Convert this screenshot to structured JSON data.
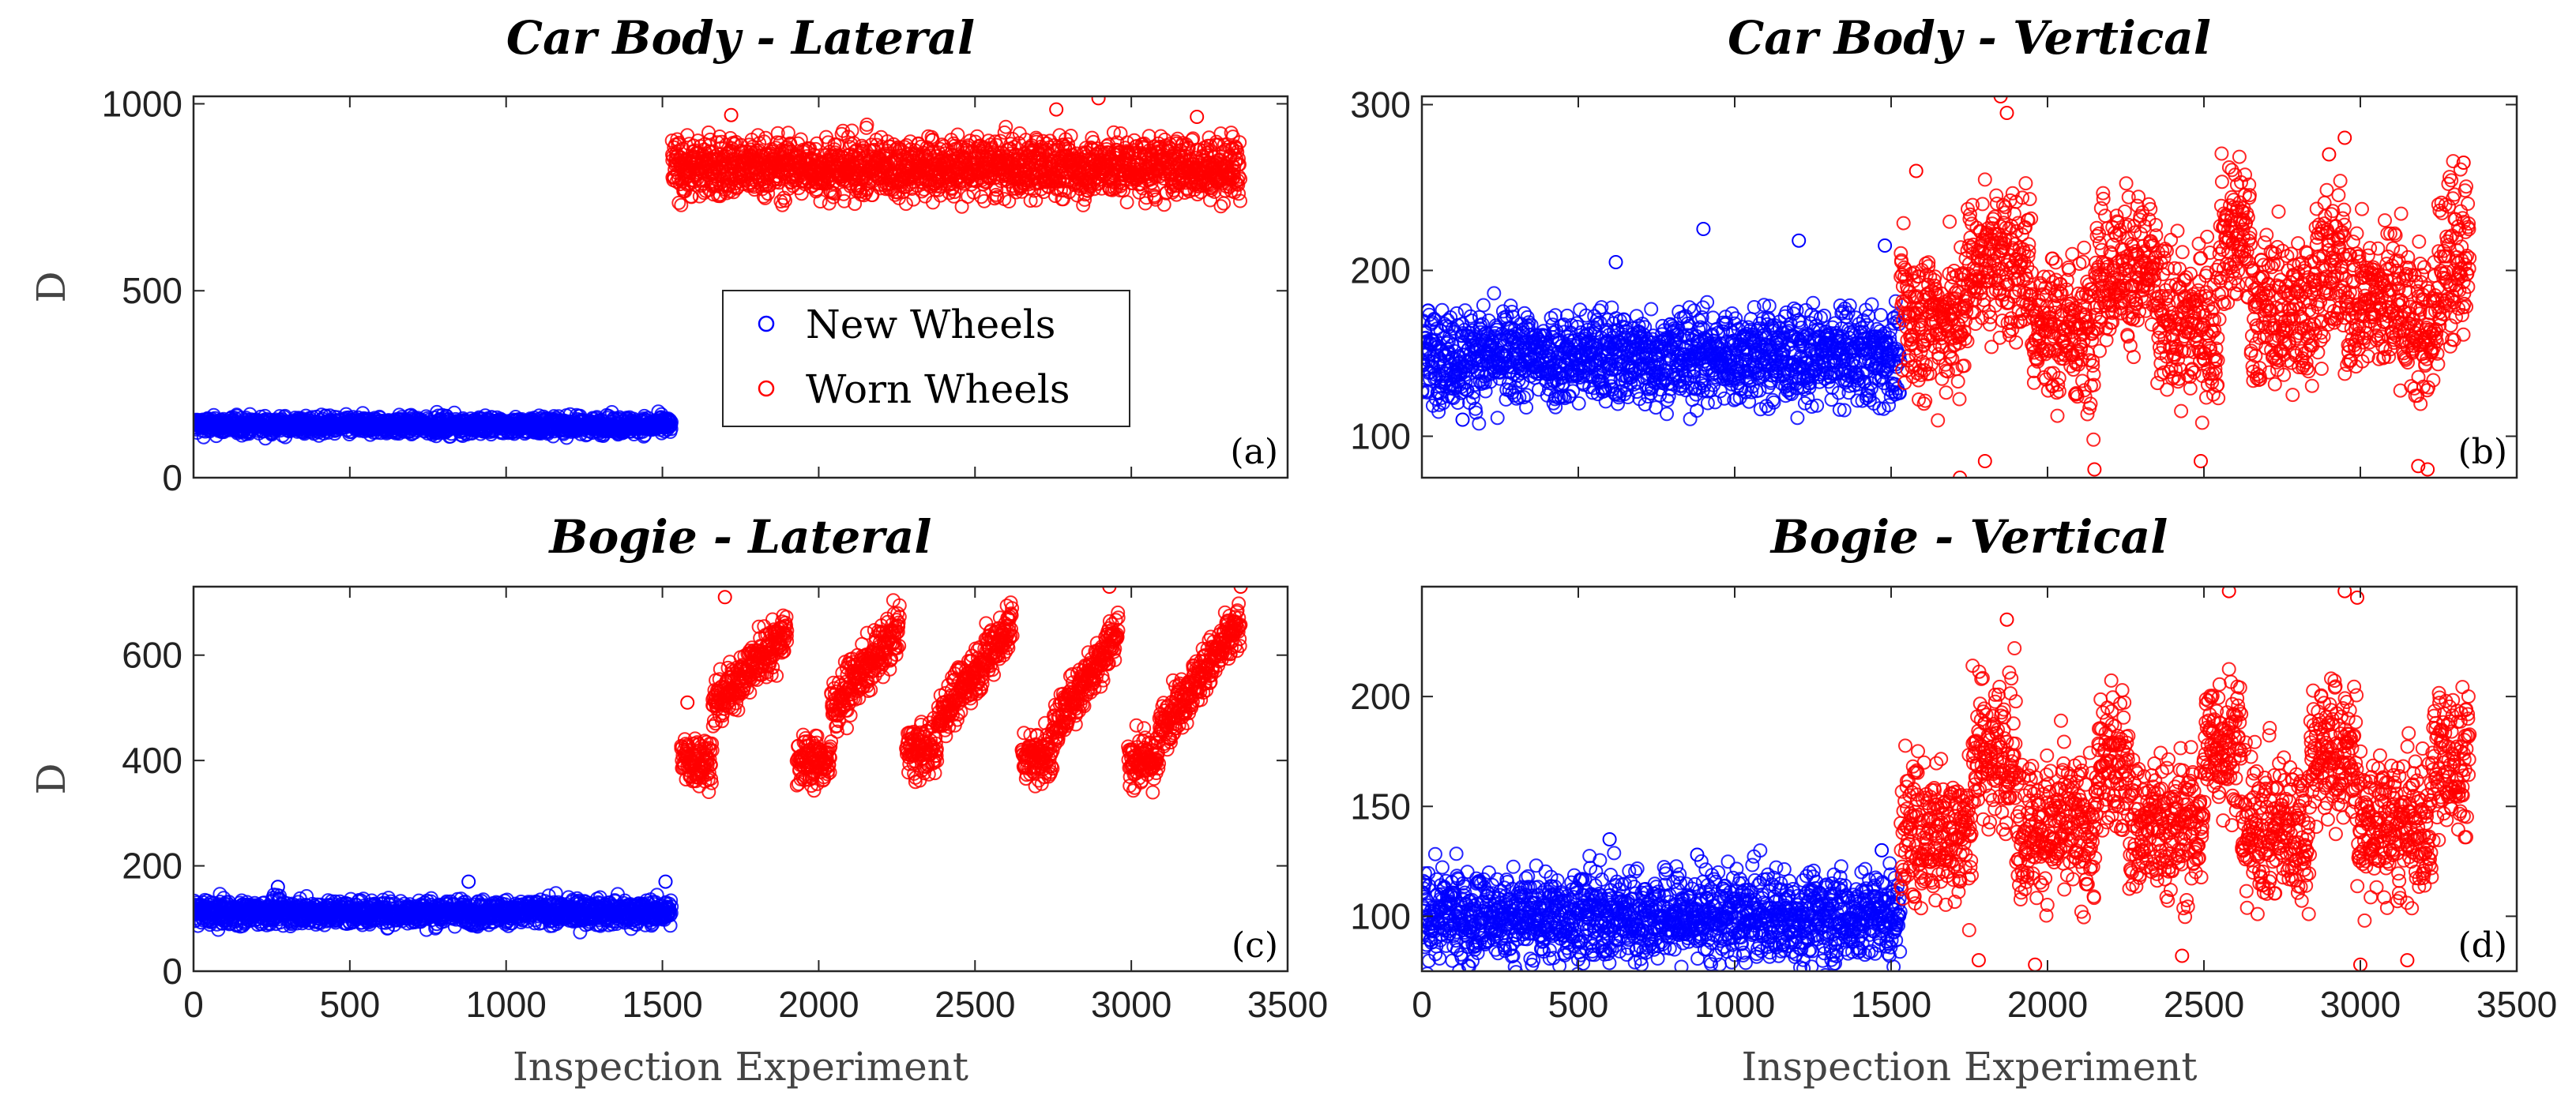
{
  "legend": {
    "items": [
      {
        "label": "New Wheels",
        "color": "#0000ff"
      },
      {
        "label": "Worn Wheels",
        "color": "#ff0000"
      }
    ]
  },
  "chart_data": [
    {
      "id": "a",
      "type": "scatter",
      "title": "Car Body - Lateral",
      "ylabel": "D",
      "xlabel": "",
      "panel_label": "(a)",
      "xlim": [
        0,
        3500
      ],
      "ylim": [
        0,
        1020
      ],
      "xticks": [
        0,
        500,
        1000,
        1500,
        2000,
        2500,
        3000,
        3500
      ],
      "xtick_labels": [],
      "yticks": [
        0,
        500,
        1000
      ],
      "ytick_labels": [
        "0",
        "500",
        "1000"
      ],
      "series": [
        {
          "name": "New Wheels",
          "color": "#0000ff",
          "x_range": [
            0,
            1530
          ],
          "segments": [
            [
              0,
              1530,
              140,
              140
            ]
          ],
          "spread": 12,
          "outliers": []
        },
        {
          "name": "Worn Wheels",
          "color": "#ff0000",
          "x_range": [
            1530,
            3350
          ],
          "segments": [
            [
              1530,
              3350,
              830,
              830
            ]
          ],
          "spread": 40,
          "outliers": [
            [
              2895,
              1015
            ],
            [
              2760,
              985
            ],
            [
              1720,
              970
            ],
            [
              3210,
              965
            ]
          ]
        }
      ]
    },
    {
      "id": "b",
      "type": "scatter",
      "title": "Car Body - Vertical",
      "ylabel": "",
      "xlabel": "",
      "panel_label": "(b)",
      "xlim": [
        0,
        3500
      ],
      "ylim": [
        75,
        305
      ],
      "xticks": [
        0,
        500,
        1000,
        1500,
        2000,
        2500,
        3000,
        3500
      ],
      "xtick_labels": [],
      "yticks": [
        100,
        200,
        300
      ],
      "ytick_labels": [
        "100",
        "200",
        "300"
      ],
      "series": [
        {
          "name": "New Wheels",
          "color": "#0000ff",
          "x_range": [
            0,
            1530
          ],
          "segments": [
            [
              0,
              1530,
              148,
              148
            ]
          ],
          "spread": 14,
          "outliers": [
            [
              620,
              205
            ],
            [
              900,
              225
            ],
            [
              1205,
              218
            ],
            [
              1480,
              215
            ],
            [
              130,
              110
            ]
          ]
        },
        {
          "name": "Worn Wheels",
          "color": "#ff0000",
          "x_range": [
            1530,
            3350
          ],
          "segments": [
            [
              1530,
              1740,
              170,
              170
            ],
            [
              1740,
              1950,
              205,
              205
            ],
            [
              1950,
              2150,
              165,
              165
            ],
            [
              2150,
              2350,
              200,
              200
            ],
            [
              2350,
              2550,
              168,
              168
            ],
            [
              2550,
              2650,
              220,
              220
            ],
            [
              2650,
              2850,
              175,
              175
            ],
            [
              2850,
              2950,
              200,
              200
            ],
            [
              2950,
              3150,
              182,
              182
            ],
            [
              3150,
              3250,
              165,
              165
            ],
            [
              3250,
              3350,
              205,
              205
            ]
          ],
          "spread": 22,
          "outliers": [
            [
              1850,
              305
            ],
            [
              1870,
              295
            ],
            [
              2950,
              280
            ],
            [
              2900,
              270
            ],
            [
              3330,
              265
            ],
            [
              1580,
              260
            ],
            [
              1720,
              75
            ],
            [
              2150,
              80
            ],
            [
              3215,
              80
            ],
            [
              1800,
              85
            ],
            [
              2490,
              85
            ],
            [
              3185,
              82
            ]
          ]
        }
      ]
    },
    {
      "id": "c",
      "type": "scatter",
      "title": "Bogie - Lateral",
      "ylabel": "D",
      "xlabel": "Inspection Experiment",
      "panel_label": "(c)",
      "xlim": [
        0,
        3500
      ],
      "ylim": [
        0,
        730
      ],
      "xticks": [
        0,
        500,
        1000,
        1500,
        2000,
        2500,
        3000,
        3500
      ],
      "xtick_labels": [
        "0",
        "500",
        "1000",
        "1500",
        "2000",
        "2500",
        "3000",
        "3500"
      ],
      "yticks": [
        0,
        200,
        400,
        600
      ],
      "ytick_labels": [
        "0",
        "200",
        "400",
        "600"
      ],
      "series": [
        {
          "name": "New Wheels",
          "color": "#0000ff",
          "x_range": [
            0,
            1530
          ],
          "segments": [
            [
              0,
              1530,
              112,
              112
            ]
          ],
          "spread": 12,
          "outliers": [
            [
              880,
              170
            ],
            [
              1510,
              170
            ],
            [
              270,
              160
            ]
          ]
        },
        {
          "name": "Worn Wheels",
          "color": "#ff0000",
          "x_range": [
            1530,
            3350
          ],
          "segments": [
            [
              1560,
              1660,
              400,
              400
            ],
            [
              1660,
              1900,
              500,
              650
            ],
            [
              1930,
              2040,
              400,
              400
            ],
            [
              2040,
              2260,
              500,
              650
            ],
            [
              2280,
              2380,
              420,
              420
            ],
            [
              2380,
              2620,
              480,
              660
            ],
            [
              2650,
              2750,
              410,
              410
            ],
            [
              2750,
              2960,
              460,
              650
            ],
            [
              2990,
              3090,
              400,
              400
            ],
            [
              3090,
              3350,
              460,
              660
            ]
          ],
          "spread": 24,
          "outliers": [
            [
              1700,
              710
            ],
            [
              2930,
              730
            ],
            [
              3350,
              730
            ],
            [
              1580,
              510
            ]
          ]
        }
      ]
    },
    {
      "id": "d",
      "type": "scatter",
      "title": "Bogie - Vertical",
      "ylabel": "",
      "xlabel": "Inspection Experiment",
      "panel_label": "(d)",
      "xlim": [
        0,
        3500
      ],
      "ylim": [
        75,
        250
      ],
      "xticks": [
        0,
        500,
        1000,
        1500,
        2000,
        2500,
        3000,
        3500
      ],
      "xtick_labels": [
        "0",
        "500",
        "1000",
        "1500",
        "2000",
        "2500",
        "3000",
        "3500"
      ],
      "yticks": [
        100,
        150,
        200
      ],
      "ytick_labels": [
        "100",
        "150",
        "200"
      ],
      "series": [
        {
          "name": "New Wheels",
          "color": "#0000ff",
          "x_range": [
            0,
            1530
          ],
          "segments": [
            [
              0,
              1530,
              100,
              100
            ]
          ],
          "spread": 10,
          "outliers": [
            [
              600,
              135
            ],
            [
              1470,
              130
            ],
            [
              880,
              128
            ]
          ]
        },
        {
          "name": "Worn Wheels",
          "color": "#ff0000",
          "x_range": [
            1530,
            3350
          ],
          "segments": [
            [
              1530,
              1760,
              138,
              138
            ],
            [
              1760,
              1900,
              175,
              175
            ],
            [
              1900,
              2160,
              140,
              140
            ],
            [
              2160,
              2260,
              170,
              170
            ],
            [
              2260,
              2500,
              140,
              140
            ],
            [
              2500,
              2620,
              180,
              180
            ],
            [
              2620,
              2840,
              140,
              140
            ],
            [
              2840,
              2990,
              175,
              175
            ],
            [
              2990,
              3230,
              140,
              140
            ],
            [
              3230,
              3350,
              170,
              170
            ]
          ],
          "spread": 16,
          "outliers": [
            [
              2580,
              248
            ],
            [
              2950,
              248
            ],
            [
              2990,
              245
            ],
            [
              1870,
              235
            ],
            [
              1960,
              78
            ],
            [
              3000,
              78
            ],
            [
              1780,
              80
            ],
            [
              2430,
              82
            ],
            [
              3150,
              80
            ]
          ]
        }
      ]
    }
  ]
}
